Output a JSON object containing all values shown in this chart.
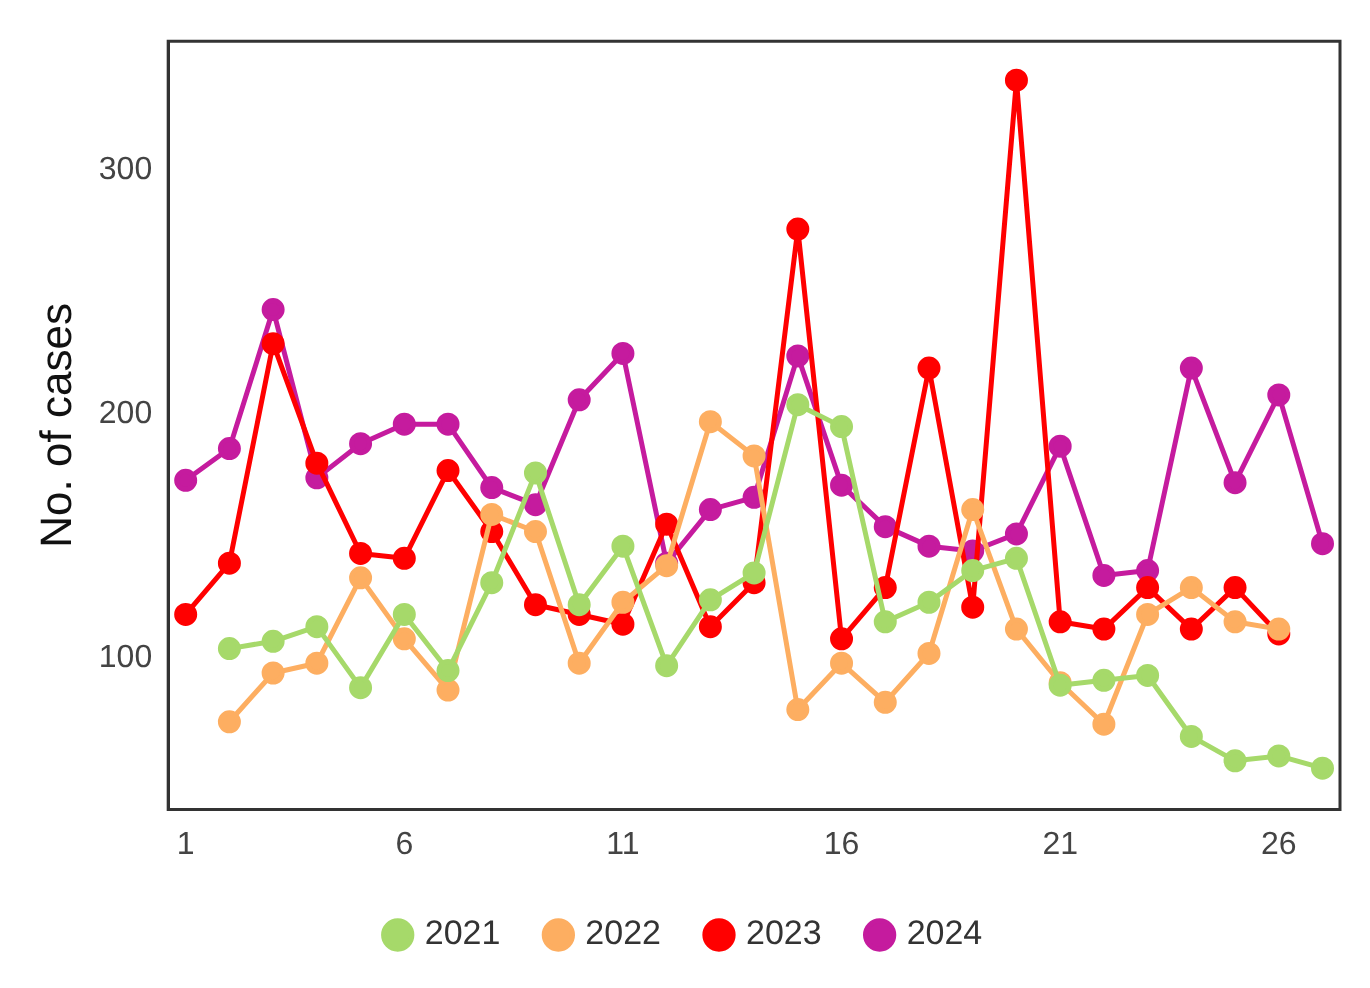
{
  "chart_data": {
    "type": "line",
    "ylabel": "No. of cases",
    "x": [
      1,
      2,
      3,
      4,
      5,
      6,
      7,
      8,
      9,
      10,
      11,
      12,
      13,
      14,
      15,
      16,
      17,
      18,
      19,
      20,
      21,
      22,
      23,
      24,
      25,
      26,
      27
    ],
    "xlim": [
      0.6,
      27.4
    ],
    "xticks": [
      1,
      6,
      11,
      16,
      21,
      26
    ],
    "ylim": [
      38,
      353
    ],
    "yticks": [
      100,
      200,
      300
    ],
    "grid": false,
    "legend": "bottom",
    "marker": "circle",
    "line_style": "solid",
    "series": [
      {
        "name": "2021",
        "color": "#a6d96a",
        "values": [
          null,
          104,
          107,
          113,
          88,
          118,
          95,
          131,
          176,
          122,
          146,
          97,
          124,
          135,
          204,
          195,
          115,
          123,
          136,
          141,
          89,
          91,
          93,
          68,
          58,
          60,
          55
        ]
      },
      {
        "name": "2022",
        "color": "#fdae61",
        "values": [
          null,
          74,
          94,
          98,
          133,
          108,
          87,
          159,
          152,
          98,
          123,
          138,
          197,
          183,
          79,
          98,
          82,
          102,
          161,
          112,
          90,
          73,
          118,
          129,
          115,
          112,
          null
        ]
      },
      {
        "name": "2023",
        "color": "#ff0000",
        "values": [
          118,
          139,
          229,
          180,
          143,
          141,
          177,
          152,
          122,
          118,
          114,
          155,
          113,
          131,
          276,
          108,
          129,
          219,
          121,
          337,
          115,
          112,
          129,
          112,
          129,
          110,
          null
        ]
      },
      {
        "name": "2024",
        "color": "#c51b9e",
        "values": [
          173,
          186,
          243,
          174,
          188,
          196,
          196,
          170,
          163,
          206,
          225,
          139,
          161,
          166,
          224,
          171,
          154,
          146,
          144,
          151,
          187,
          134,
          136,
          219,
          172,
          208,
          147
        ]
      }
    ]
  }
}
